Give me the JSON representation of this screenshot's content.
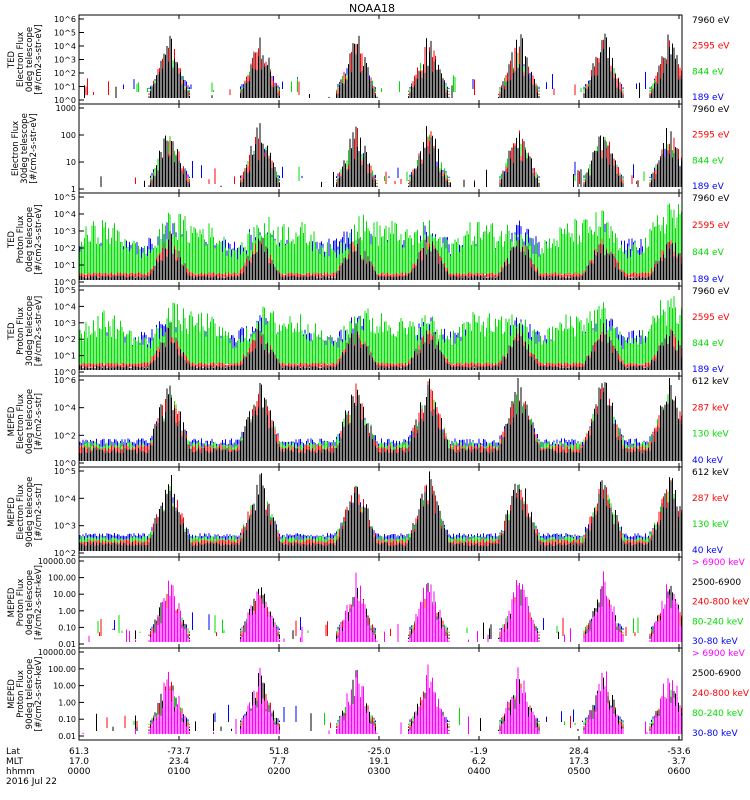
{
  "title": "NOAA18",
  "x_axis": {
    "row_labels": [
      "Lat",
      "MLT",
      "hhmm"
    ],
    "columns": [
      {
        "lat": "61.3",
        "mlt": "17.0",
        "hhmm": "0000"
      },
      {
        "lat": "-73.7",
        "mlt": "23.4",
        "hhmm": "0100"
      },
      {
        "lat": "51.8",
        "mlt": "7.7",
        "hhmm": "0200"
      },
      {
        "lat": "-25.0",
        "mlt": "19.1",
        "hhmm": "0300"
      },
      {
        "lat": "-1.9",
        "mlt": "6.2",
        "hhmm": "0400"
      },
      {
        "lat": "28.4",
        "mlt": "17.3",
        "hhmm": "0500"
      },
      {
        "lat": "-53.6",
        "mlt": "3.7",
        "hhmm": "0600"
      }
    ],
    "date": "2016 Jul 22"
  },
  "colors": {
    "black": "#000000",
    "red": "#ff0000",
    "green": "#00dd00",
    "blue": "#0000ff",
    "magenta": "#ff00ff"
  },
  "chart_data": [
    {
      "type": "line",
      "ylabel": [
        "TED",
        "Electron Flux",
        "0deg telescope",
        "[#/cm2-s-str-eV]"
      ],
      "scale": "log",
      "yticks": [
        "10^6",
        "10^5",
        "10^4",
        "10^3",
        "10^2",
        "10^1",
        "10^0"
      ],
      "series": [
        {
          "name": "7960 eV",
          "color": "#000000"
        },
        {
          "name": "2595 eV",
          "color": "#ff0000"
        },
        {
          "name": "844 eV",
          "color": "#00dd00"
        },
        {
          "name": "189 eV",
          "color": "#0000ff"
        }
      ]
    },
    {
      "type": "line",
      "ylabel": [
        "Electron Flux",
        "30deg telescope",
        "[#/cm2-s-str-eV]"
      ],
      "scale": "log",
      "yticks": [
        "1000",
        "100",
        "10",
        "1"
      ],
      "series": [
        {
          "name": "7960 eV",
          "color": "#000000"
        },
        {
          "name": "2595 eV",
          "color": "#ff0000"
        },
        {
          "name": "844 eV",
          "color": "#00dd00"
        },
        {
          "name": "189 eV",
          "color": "#0000ff"
        }
      ]
    },
    {
      "type": "line",
      "ylabel": [
        "TED",
        "Proton Flux",
        "0deg telescope",
        "[#/cm2-s-str-eV]"
      ],
      "scale": "log",
      "yticks": [
        "10^5",
        "10^4",
        "10^3",
        "10^2",
        "10^1",
        "10^0"
      ],
      "series": [
        {
          "name": "7960 eV",
          "color": "#000000"
        },
        {
          "name": "2595 eV",
          "color": "#ff0000"
        },
        {
          "name": "844 eV",
          "color": "#00dd00"
        },
        {
          "name": "189 eV",
          "color": "#0000ff"
        }
      ]
    },
    {
      "type": "line",
      "ylabel": [
        "TED",
        "Proton Flux",
        "30deg telescope",
        "[#/cm2-s-str-eV]"
      ],
      "scale": "log",
      "yticks": [
        "10^5",
        "10^4",
        "10^3",
        "10^2",
        "10^1",
        "10^0"
      ],
      "series": [
        {
          "name": "7960 eV",
          "color": "#000000"
        },
        {
          "name": "2595 eV",
          "color": "#ff0000"
        },
        {
          "name": "844 eV",
          "color": "#00dd00"
        },
        {
          "name": "189 eV",
          "color": "#0000ff"
        }
      ]
    },
    {
      "type": "line",
      "ylabel": [
        "MEPED",
        "Electron Flux",
        "0deg telescope",
        "[#/cm2-s-str]"
      ],
      "scale": "log",
      "yticks": [
        "10^6",
        "10^4",
        "10^2",
        "10^0"
      ],
      "series": [
        {
          "name": "612 keV",
          "color": "#000000"
        },
        {
          "name": "287 keV",
          "color": "#ff0000"
        },
        {
          "name": "130 keV",
          "color": "#00dd00"
        },
        {
          "name": "40 keV",
          "color": "#0000ff"
        }
      ]
    },
    {
      "type": "line",
      "ylabel": [
        "MEPED",
        "Electron Flux",
        "90deg telescope",
        "[#/cm2-s-str]"
      ],
      "scale": "log",
      "yticks": [
        "10^5",
        "10^4",
        "10^3",
        "10^2"
      ],
      "series": [
        {
          "name": "612 keV",
          "color": "#000000"
        },
        {
          "name": "287 keV",
          "color": "#ff0000"
        },
        {
          "name": "130 keV",
          "color": "#00dd00"
        },
        {
          "name": "40 keV",
          "color": "#0000ff"
        }
      ]
    },
    {
      "type": "line",
      "ylabel": [
        "MEPED",
        "Proton Flux",
        "0deg telescope",
        "[#/cm2-s-str-keV]"
      ],
      "scale": "log",
      "yticks": [
        "10000.00",
        "100.00",
        "10.00",
        "1.00",
        "0.10",
        "0.01"
      ],
      "series": [
        {
          "name": "> 6900 keV",
          "color": "#ff00ff"
        },
        {
          "name": "2500-6900",
          "color": "#000000"
        },
        {
          "name": "240-800 keV",
          "color": "#ff0000"
        },
        {
          "name": "80-240 keV",
          "color": "#00dd00"
        },
        {
          "name": "30-80 keV",
          "color": "#0000ff"
        }
      ]
    },
    {
      "type": "line",
      "ylabel": [
        "MEPED",
        "Proton Flux",
        "90deg telescope",
        "[#/cm2-s-str-keV]"
      ],
      "scale": "log",
      "yticks": [
        "10000.00",
        "100.00",
        "10.00",
        "1.00",
        "0.10",
        "0.01"
      ],
      "series": [
        {
          "name": "> 6900 keV",
          "color": "#ff00ff"
        },
        {
          "name": "2500-6900",
          "color": "#000000"
        },
        {
          "name": "240-800 keV",
          "color": "#ff0000"
        },
        {
          "name": "80-240 keV",
          "color": "#00dd00"
        },
        {
          "name": "30-80 keV",
          "color": "#0000ff"
        }
      ]
    }
  ]
}
